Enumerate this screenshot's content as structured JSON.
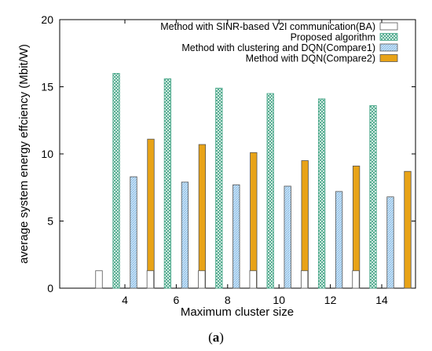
{
  "chart_data": {
    "type": "bar",
    "xlabel": "Maximum cluster size",
    "ylabel": "average system energy effciency (Mbit/W)",
    "categories": [
      "4",
      "6",
      "8",
      "10",
      "12",
      "14"
    ],
    "ylim": [
      0,
      20
    ],
    "yticks": [
      "0",
      "5",
      "10",
      "15",
      "20"
    ],
    "grid": false,
    "legend_position": "top-right",
    "series": [
      {
        "name": "Method with SINR-based V2I communication(BA)",
        "values": [
          1.3,
          1.3,
          1.3,
          1.3,
          1.3,
          1.3
        ],
        "color": "#ffffff",
        "pattern": "none"
      },
      {
        "name": "Proposed algorithm",
        "values": [
          16.0,
          15.6,
          14.9,
          14.5,
          14.1,
          13.6
        ],
        "color": "#7fc9b0",
        "pattern": "crosshatch"
      },
      {
        "name": "Method with clustering and DQN(Compare1)",
        "values": [
          8.3,
          7.9,
          7.7,
          7.6,
          7.2,
          6.8
        ],
        "color": "#a8d0f0",
        "pattern": "hatch"
      },
      {
        "name": "Method with DQN(Compare2)",
        "values": [
          11.1,
          10.7,
          10.1,
          9.5,
          9.1,
          8.7
        ],
        "color": "#e8a317",
        "pattern": "none"
      }
    ]
  },
  "caption": {
    "prefix": "(",
    "label": "a",
    "suffix": ")"
  }
}
